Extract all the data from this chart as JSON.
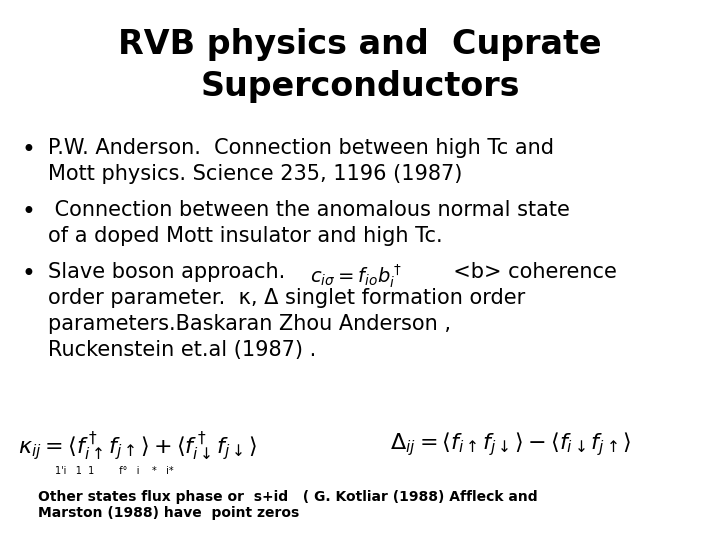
{
  "title_line1": "RVB physics and  Cuprate",
  "title_line2": "Superconductors",
  "background_color": "#ffffff",
  "text_color": "#000000",
  "bullet1_line1": "P.W. Anderson.  Connection between high Tc and",
  "bullet1_line2": "Mott physics. Science 235, 1196 (1987)",
  "bullet2_line1": " Connection between the anomalous normal state",
  "bullet2_line2": "of a doped Mott insulator and high Tc.",
  "bullet3_line1": "Slave boson approach.",
  "bullet3_formula": "$c_{i\\sigma} = f_{io}b^\\dagger_i$",
  "bullet3_after_formula": "  <b> coherence",
  "bullet3_line3": "order parameter.  κ, Δ singlet formation order",
  "bullet3_line4": "parameters.Baskaran Zhou Anderson ,",
  "bullet3_line5": "Ruckenstein et.al (1987) .",
  "formula_kappa": "$\\kappa_{ij} = \\langle f^\\dagger_{i\\uparrow}f_{j\\uparrow}\\rangle + \\langle f^\\dagger_{i\\downarrow}f_{j\\downarrow}\\rangle$",
  "formula_delta": "$\\Delta_{ij} = \\langle f_{i\\uparrow}f_{j\\downarrow}\\rangle - \\langle f_{i\\downarrow}f_{j\\uparrow}\\rangle$",
  "footnote": "Other states flux phase or  s+id   ( G. Kotliar (1988) Affleck and",
  "footnote2": "Marston (1988) have  point zeros",
  "title_fontsize": 24,
  "body_fontsize": 15,
  "formula_fontsize": 14,
  "footnote_fontsize": 10
}
